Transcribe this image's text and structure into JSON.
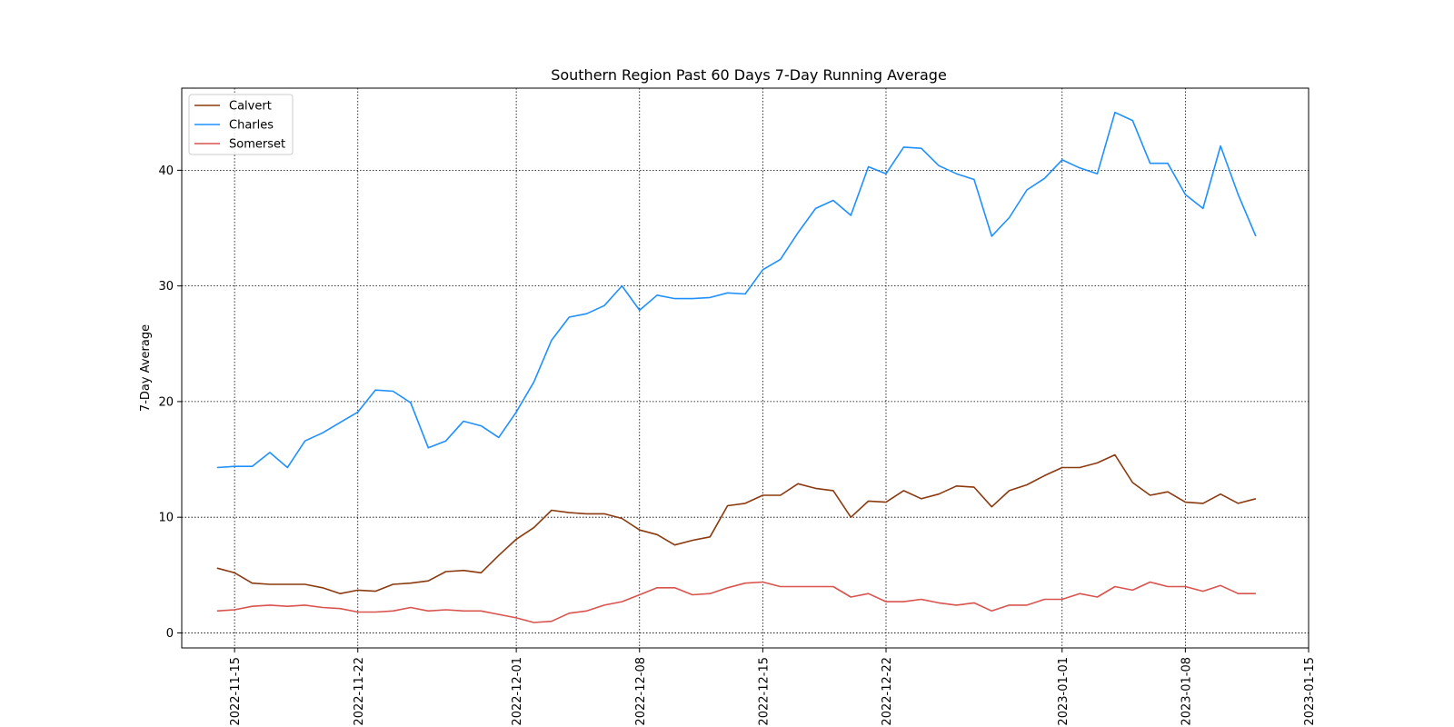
{
  "chart_data": {
    "type": "line",
    "title": "Southern Region Past 60 Days 7-Day Running Average",
    "xlabel": "",
    "ylabel": "7-Day Average",
    "x_type": "date",
    "xlim": [
      "2022-11-12",
      "2023-01-15"
    ],
    "ylim": [
      -1.3,
      47.1
    ],
    "x_ticks": [
      "2022-11-15",
      "2022-11-22",
      "2022-12-01",
      "2022-12-08",
      "2022-12-15",
      "2022-12-22",
      "2023-01-01",
      "2023-01-08",
      "2023-01-15"
    ],
    "y_ticks": [
      0,
      10,
      20,
      30,
      40
    ],
    "grid": true,
    "grid_style": "dotted",
    "legend_position": "top-left",
    "x": [
      "2022-11-14",
      "2022-11-15",
      "2022-11-16",
      "2022-11-17",
      "2022-11-18",
      "2022-11-19",
      "2022-11-20",
      "2022-11-21",
      "2022-11-22",
      "2022-11-23",
      "2022-11-24",
      "2022-11-25",
      "2022-11-26",
      "2022-11-27",
      "2022-11-28",
      "2022-11-29",
      "2022-11-30",
      "2022-12-01",
      "2022-12-02",
      "2022-12-03",
      "2022-12-04",
      "2022-12-05",
      "2022-12-06",
      "2022-12-07",
      "2022-12-08",
      "2022-12-09",
      "2022-12-10",
      "2022-12-11",
      "2022-12-12",
      "2022-12-13",
      "2022-12-14",
      "2022-12-15",
      "2022-12-16",
      "2022-12-17",
      "2022-12-18",
      "2022-12-19",
      "2022-12-20",
      "2022-12-21",
      "2022-12-22",
      "2022-12-23",
      "2022-12-24",
      "2022-12-25",
      "2022-12-26",
      "2022-12-27",
      "2022-12-28",
      "2022-12-29",
      "2022-12-30",
      "2022-12-31",
      "2023-01-01",
      "2023-01-02",
      "2023-01-03",
      "2023-01-04",
      "2023-01-05",
      "2023-01-06",
      "2023-01-07",
      "2023-01-08",
      "2023-01-09",
      "2023-01-10",
      "2023-01-11",
      "2023-01-12"
    ],
    "series": [
      {
        "name": "Calvert",
        "color": "#8b3a0f",
        "values": [
          5.6,
          5.2,
          4.3,
          4.2,
          4.2,
          4.2,
          3.9,
          3.4,
          3.7,
          3.6,
          4.2,
          4.3,
          4.5,
          5.3,
          5.4,
          5.2,
          6.7,
          8.1,
          9.1,
          10.6,
          10.4,
          10.3,
          10.3,
          9.9,
          8.9,
          8.5,
          7.6,
          8.0,
          8.3,
          11.0,
          11.2,
          11.9,
          11.9,
          12.9,
          12.5,
          12.3,
          10.0,
          11.4,
          11.3,
          12.3,
          11.6,
          12.0,
          12.7,
          12.6,
          10.9,
          12.3,
          12.8,
          13.6,
          14.3,
          14.3,
          14.7,
          15.4,
          13.0,
          11.9,
          12.2,
          11.3,
          11.2,
          12.0,
          11.2,
          11.6
        ]
      },
      {
        "name": "Charles",
        "color": "#1e90ff",
        "values": [
          14.3,
          14.4,
          14.4,
          15.6,
          14.3,
          16.6,
          17.3,
          18.2,
          19.1,
          21.0,
          20.9,
          19.9,
          16.0,
          16.6,
          18.3,
          17.9,
          16.9,
          19.1,
          21.7,
          25.3,
          27.3,
          27.6,
          28.3,
          30.0,
          27.9,
          29.2,
          28.9,
          28.9,
          29.0,
          29.4,
          29.3,
          31.4,
          32.3,
          34.6,
          36.7,
          37.4,
          36.1,
          40.3,
          39.7,
          42.0,
          41.9,
          40.4,
          39.7,
          39.2,
          34.3,
          35.9,
          38.3,
          39.3,
          40.9,
          40.2,
          39.7,
          45.0,
          44.3,
          40.6,
          40.6,
          37.9,
          36.7,
          42.1,
          37.9,
          34.3
        ]
      },
      {
        "name": "Somerset",
        "color": "#d9534f",
        "values": [
          1.9,
          2.0,
          2.3,
          2.4,
          2.3,
          2.4,
          2.2,
          2.1,
          1.8,
          1.8,
          1.9,
          2.2,
          1.9,
          2.0,
          1.9,
          1.9,
          1.6,
          1.3,
          0.9,
          1.0,
          1.7,
          1.9,
          2.4,
          2.7,
          3.3,
          3.9,
          3.9,
          3.3,
          3.4,
          3.9,
          4.3,
          4.4,
          4.0,
          4.0,
          4.0,
          4.0,
          3.1,
          3.4,
          2.7,
          2.7,
          2.9,
          2.6,
          2.4,
          2.6,
          1.9,
          2.4,
          2.4,
          2.9,
          2.9,
          3.4,
          3.1,
          4.0,
          3.7,
          4.4,
          4.0,
          4.0,
          3.6,
          4.1,
          3.4,
          3.4
        ]
      }
    ]
  }
}
